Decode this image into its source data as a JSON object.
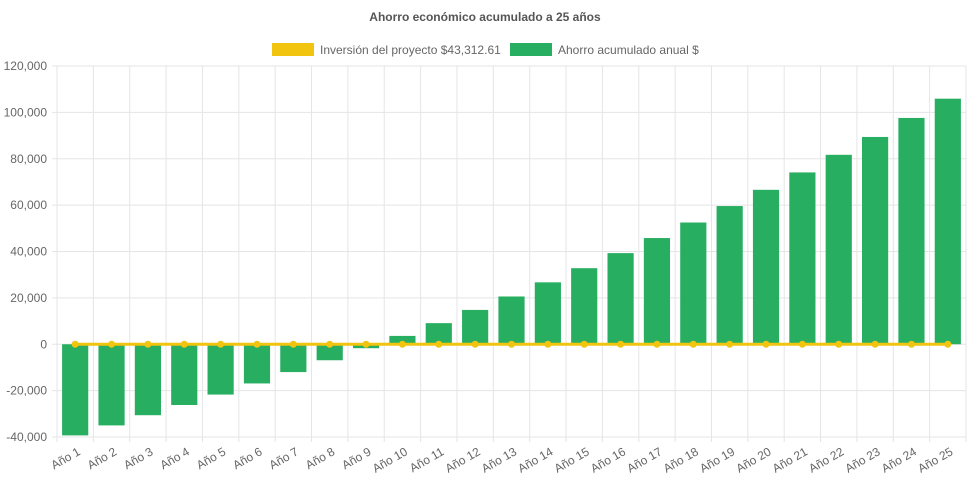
{
  "chart_data": {
    "type": "bar",
    "title": "Ahorro económico acumulado a 25 años",
    "xlabel": "",
    "ylabel": "",
    "categories": [
      "Año 1",
      "Año 2",
      "Año 3",
      "Año 4",
      "Año 5",
      "Año 6",
      "Año 7",
      "Año 8",
      "Año 9",
      "Año 10",
      "Año 11",
      "Año 12",
      "Año 13",
      "Año 14",
      "Año 15",
      "Año 16",
      "Año 17",
      "Año 18",
      "Año 19",
      "Año 20",
      "Año 21",
      "Año 22",
      "Año 23",
      "Año 24",
      "Año 25"
    ],
    "ylim": [
      -40000,
      120000
    ],
    "yticks": [
      120000,
      100000,
      80000,
      60000,
      40000,
      20000,
      0,
      -20000,
      -40000
    ],
    "ytick_labels": [
      "120,000",
      "100,000",
      "80,000",
      "60,000",
      "40,000",
      "20,000",
      "0",
      "-20,000",
      "-40,000"
    ],
    "grid": true,
    "legend_position": "top",
    "series": [
      {
        "name": "Inversión del proyecto $43,312.61",
        "type": "line",
        "color": "#f1c40f",
        "values": [
          0,
          0,
          0,
          0,
          0,
          0,
          0,
          0,
          0,
          0,
          0,
          0,
          0,
          0,
          0,
          0,
          0,
          0,
          0,
          0,
          0,
          0,
          0,
          0,
          0
        ]
      },
      {
        "name": "Ahorro acumulado anual $",
        "type": "bar",
        "color": "#27ae60",
        "values": [
          -39300,
          -35000,
          -30600,
          -26200,
          -21700,
          -16900,
          -12000,
          -6900,
          -1700,
          3600,
          9100,
          14800,
          20600,
          26700,
          32800,
          39300,
          45800,
          52500,
          59600,
          66600,
          74100,
          81700,
          89400,
          97600,
          105900
        ]
      }
    ]
  }
}
